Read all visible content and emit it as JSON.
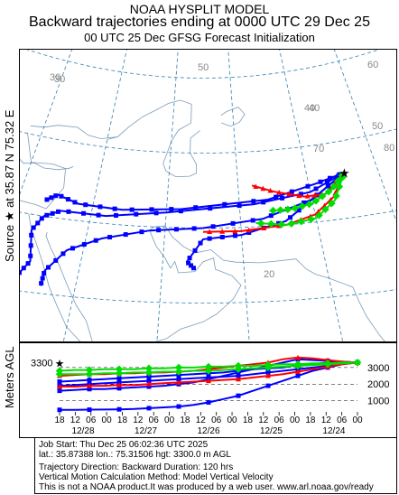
{
  "header": {
    "model": "NOAA HYSPLIT MODEL",
    "title": "Backward trajectories ending at 0000 UTC 29 Dec 25",
    "subtitle": "00 UTC 25 Dec    GFSG  Forecast Initialization"
  },
  "source_label": "Source ★ at   35.87 N   75.32 E",
  "map": {
    "lat_labels": [
      "60",
      "50",
      "40",
      "30",
      "20"
    ],
    "lon_labels": [
      "30",
      "40",
      "50",
      "70",
      "80"
    ],
    "colors": {
      "grid": "#2d7fb0",
      "land": "#7a9cba",
      "red": "#ff0000",
      "blue": "#0000ff",
      "green": "#00dd00"
    }
  },
  "profile": {
    "ylabel": "Meters AGL",
    "start_height_label": "3300",
    "y_ticks": [
      "3000",
      "2000",
      "1000"
    ],
    "time_ticks": [
      "18",
      "12",
      "06",
      "00",
      "18",
      "12",
      "06",
      "00",
      "18",
      "12",
      "06",
      "00",
      "18",
      "12",
      "06",
      "00",
      "18",
      "12",
      "06",
      "00"
    ],
    "date_labels": [
      "12/28",
      "12/27",
      "12/26",
      "12/25",
      "12/24"
    ]
  },
  "footer": {
    "line1": "Job Start: Thu Dec 25 06:02:36 UTC 2025",
    "line2": "lat.: 35.87388   lon.: 75.31506   hgt: 3300.0 m AGL",
    "line3": "Trajectory Direction: Backward       Duration: 120 hrs",
    "line4": "Vertical Motion Calculation Method: Model Vertical Velocity",
    "line5": "This is not a NOAA product.It was produced by a web user. www.arl.noaa.gov/ready"
  },
  "chart_data": {
    "type": "line",
    "title": "Backward trajectories ending at 0000 UTC 29 Dec 25",
    "source": {
      "lat": 35.87,
      "lon": 75.32,
      "height_m_agl": 3300
    },
    "duration_hours": 120,
    "series": [
      {
        "color": "blue",
        "path": [
          [
            75.3,
            35.9
          ],
          [
            70,
            34
          ],
          [
            62,
            33
          ],
          [
            50,
            32
          ],
          [
            42,
            31
          ],
          [
            36,
            31
          ],
          [
            34,
            30
          ],
          [
            33,
            28
          ],
          [
            34,
            24
          ],
          [
            33,
            22
          ]
        ],
        "heights": [
          3300,
          3250,
          3100,
          3000,
          2900,
          2800,
          2700,
          2600,
          2500,
          2450,
          2400,
          2350,
          2300,
          2250,
          2200,
          2150,
          2100,
          2050,
          2000,
          1950,
          1900
        ]
      },
      {
        "color": "blue",
        "path": [
          [
            75.3,
            35.9
          ],
          [
            71,
            35
          ],
          [
            64,
            33.5
          ],
          [
            52,
            32.5
          ],
          [
            44,
            32
          ],
          [
            38,
            32.2
          ],
          [
            35,
            33
          ],
          [
            33.5,
            32
          ]
        ],
        "heights": [
          3300,
          3350,
          3300,
          3200,
          3150,
          3000,
          2950,
          2900,
          2800,
          2700,
          2650,
          2600,
          2550,
          2500,
          2450,
          2400,
          2350,
          2300,
          2250,
          2200,
          2150
        ]
      },
      {
        "color": "blue",
        "path": [
          [
            75.3,
            35.9
          ],
          [
            70,
            33
          ],
          [
            66,
            30.5
          ],
          [
            60,
            29
          ],
          [
            55,
            28.5
          ],
          [
            53,
            25.5
          ],
          [
            54,
            24.5
          ]
        ],
        "heights": [
          3300,
          3200,
          3000,
          2800,
          2500,
          2200,
          1900,
          1600,
          1300,
          1100,
          900,
          750,
          650,
          600,
          550,
          500,
          480,
          470,
          460,
          450,
          450
        ]
      },
      {
        "color": "blue",
        "path": [
          [
            75.3,
            35.9
          ],
          [
            70,
            33
          ],
          [
            63,
            31
          ],
          [
            55,
            30
          ],
          [
            48,
            29.5
          ],
          [
            42,
            28
          ],
          [
            38,
            26
          ],
          [
            36,
            23
          ],
          [
            36,
            21
          ]
        ],
        "heights": [
          3300,
          3350,
          3400,
          3450,
          3500,
          3300,
          3100,
          2900,
          2700,
          2500,
          2300,
          2100,
          2000,
          1900,
          1850,
          1800,
          1750,
          1700,
          1700,
          1650,
          1600
        ]
      },
      {
        "color": "red",
        "path": [
          [
            75.3,
            35.9
          ],
          [
            73,
            33
          ],
          [
            70,
            31
          ],
          [
            66,
            30
          ],
          [
            60,
            29.5
          ],
          [
            55,
            29.5
          ]
        ],
        "heights": [
          3300,
          3200,
          3050,
          2900,
          2750,
          2600,
          2500,
          2400,
          2300,
          2250,
          2200,
          2150,
          2100,
          2050,
          2000,
          1950,
          1950,
          1900,
          1900,
          1850,
          1850
        ]
      },
      {
        "color": "red",
        "path": [
          [
            75.3,
            35.9
          ],
          [
            72,
            33.5
          ],
          [
            69,
            33.5
          ],
          [
            65,
            34.5
          ],
          [
            62,
            35.5
          ]
        ],
        "heights": [
          3300,
          3350,
          3450,
          3550,
          3600,
          3500,
          3300,
          3200,
          3100,
          3000,
          2900,
          2800,
          2750,
          2700,
          2700,
          2650,
          2650,
          2600,
          2600,
          2550,
          2500
        ]
      },
      {
        "color": "green",
        "path": [
          [
            75.3,
            35.9
          ],
          [
            73,
            32.5
          ],
          [
            70,
            30.5
          ],
          [
            66,
            30
          ],
          [
            62,
            30.5
          ]
        ],
        "heights": [
          3300,
          3250,
          3200,
          3150,
          3100,
          3050,
          3000,
          2950,
          2900,
          2850,
          2800,
          2800,
          2750,
          2750,
          2700,
          2700,
          2650,
          2650,
          2600,
          2600,
          2600
        ]
      },
      {
        "color": "green",
        "path": [
          [
            75.3,
            35.9
          ],
          [
            73,
            34
          ],
          [
            70,
            32.5
          ],
          [
            67,
            32
          ],
          [
            64,
            32
          ]
        ],
        "heights": [
          3300,
          3300,
          3250,
          3250,
          3200,
          3200,
          3150,
          3100,
          3100,
          3050,
          3050,
          3000,
          3000,
          2950,
          2950,
          2900,
          2900,
          2900,
          2850,
          2850,
          2800
        ]
      }
    ]
  }
}
